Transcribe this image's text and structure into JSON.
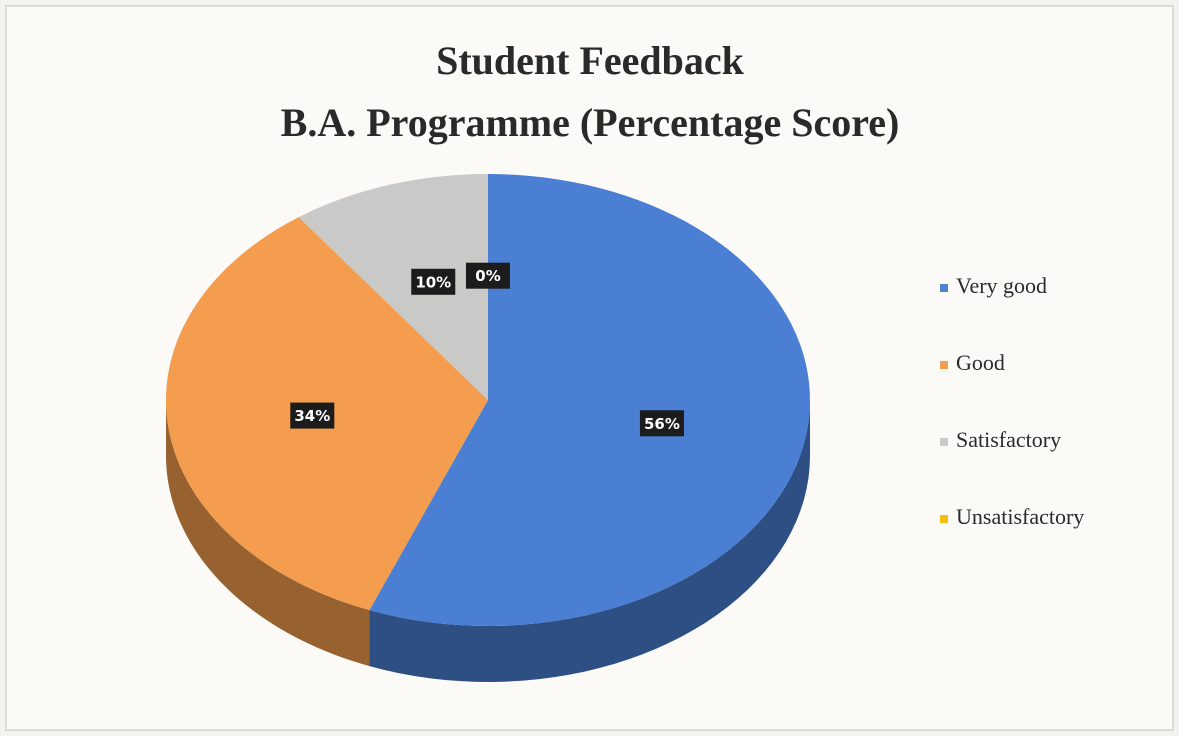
{
  "chart_data": {
    "type": "pie",
    "title": [
      "Student Feedback",
      "B.A. Programme (Percentage Score)"
    ],
    "categories": [
      "Very good",
      "Good",
      "Satisfactory",
      "Unsatisfactory"
    ],
    "values": [
      56,
      34,
      10,
      0
    ],
    "value_labels": [
      "56%",
      "34%",
      "10%",
      "0%"
    ],
    "colors": [
      "#4a7fd4",
      "#f59d4e",
      "#c9c9c7",
      "#f2c314"
    ],
    "legend": "right"
  }
}
